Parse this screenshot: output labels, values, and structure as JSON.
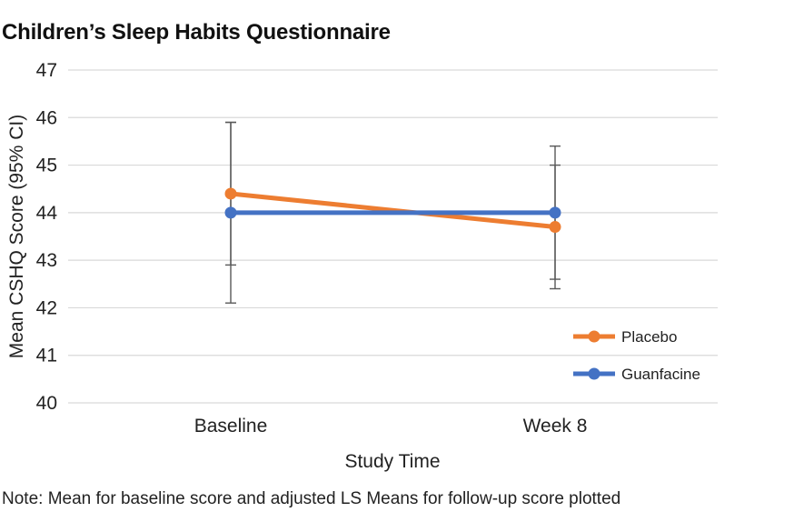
{
  "chart_data": {
    "type": "line",
    "title": "Children’s Sleep Habits Questionnaire",
    "xlabel": "Study Time",
    "ylabel": "Mean CSHQ Score (95% CI)",
    "categories": [
      "Baseline",
      "Week 8"
    ],
    "ylim": [
      40,
      47
    ],
    "yticks": [
      40,
      41,
      42,
      43,
      44,
      45,
      46,
      47
    ],
    "grid": "horizontal",
    "legend_position": "bottom-right",
    "series": [
      {
        "name": "Placebo",
        "color": "#ED7D31",
        "values": [
          44.4,
          43.7
        ],
        "ci_lower": [
          42.9,
          42.4
        ],
        "ci_upper": [
          45.9,
          45.0
        ]
      },
      {
        "name": "Guanfacine",
        "color": "#4472C4",
        "values": [
          44.0,
          44.0
        ],
        "ci_lower": [
          42.1,
          42.6
        ],
        "ci_upper": [
          45.9,
          45.4
        ]
      }
    ],
    "note": "Note: Mean for baseline score and adjusted LS Means for follow-up score plotted"
  }
}
